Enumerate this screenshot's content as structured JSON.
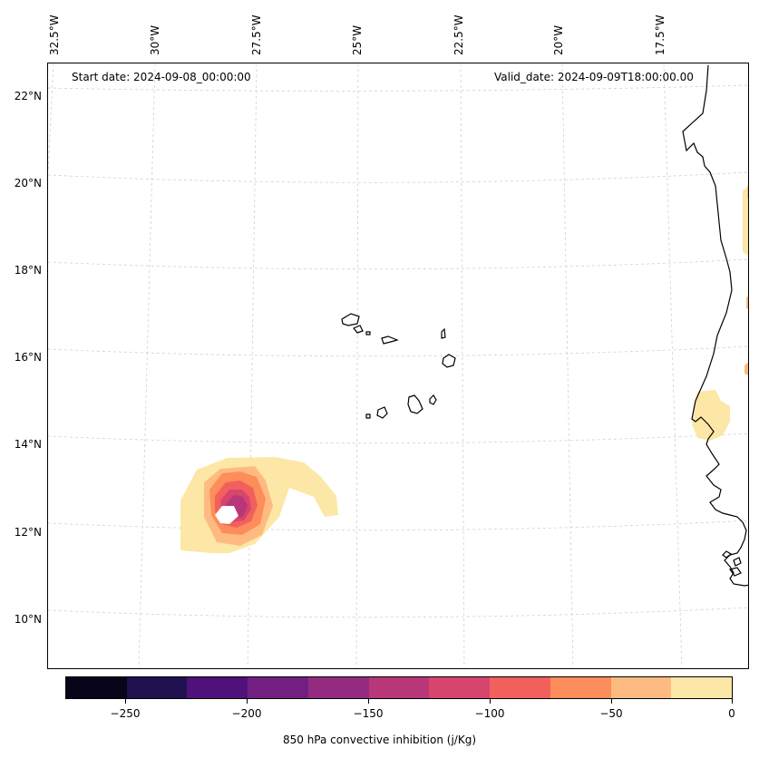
{
  "header": {
    "start_date": "Start date: 2024-09-08_00:00:00",
    "valid_date": "Valid_date: 2024-09-09T18:00:00.00"
  },
  "longitude_labels": [
    "32.5°W",
    "30°W",
    "27.5°W",
    "25°W",
    "22.5°W",
    "20°W",
    "17.5°W"
  ],
  "latitude_labels": [
    "22°N",
    "20°N",
    "18°N",
    "16°N",
    "14°N",
    "12°N",
    "10°N"
  ],
  "colorbar": {
    "title": "850 hPa convective inhibition (j/Kg)",
    "tick_labels": [
      "−250",
      "−200",
      "−150",
      "−100",
      "−50",
      "0"
    ],
    "levels": [
      -275,
      -250,
      -225,
      -200,
      -175,
      -150,
      -125,
      -100,
      -75,
      -50,
      -25,
      0
    ],
    "colors": [
      "#06051a",
      "#221150",
      "#4f127b",
      "#721f81",
      "#932b80",
      "#b73779",
      "#d6456c",
      "#f1605d",
      "#fd8d5a",
      "#febb81",
      "#fde7a6"
    ]
  }
}
